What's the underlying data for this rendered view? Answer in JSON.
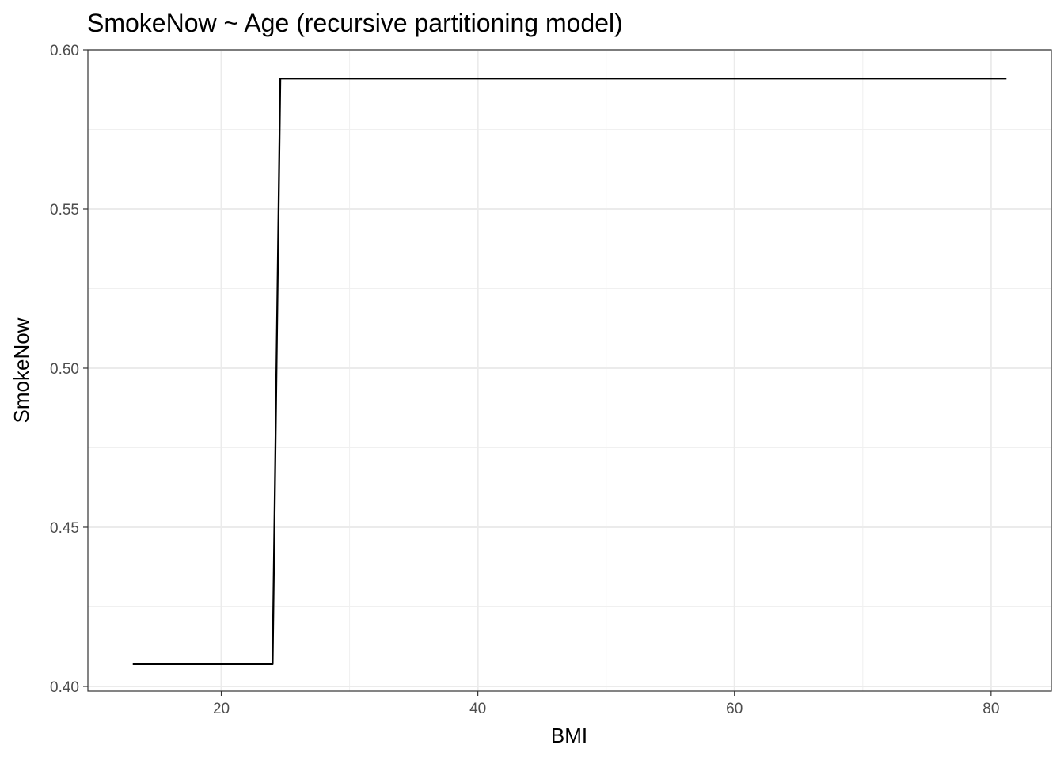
{
  "chart_data": {
    "type": "line",
    "title": "SmokeNow ~ Age (recursive partitioning model)",
    "xlabel": "BMI",
    "ylabel": "SmokeNow",
    "xlim": [
      9.6,
      84.7
    ],
    "ylim": [
      0.3985,
      0.6
    ],
    "x_ticks": [
      20,
      40,
      60,
      80
    ],
    "x_tick_labels": [
      "20",
      "40",
      "60",
      "80"
    ],
    "x_minor": [
      10,
      30,
      50,
      70
    ],
    "y_ticks": [
      0.4,
      0.45,
      0.5,
      0.55,
      0.6
    ],
    "y_tick_labels": [
      "0.40",
      "0.45",
      "0.50",
      "0.55",
      "0.60"
    ],
    "y_minor": [
      0.425,
      0.475,
      0.525,
      0.575
    ],
    "grid": true,
    "legend": "none",
    "series": [
      {
        "color": "#000000",
        "x": [
          13.1,
          24.0,
          24.6,
          81.2
        ],
        "y": [
          0.407,
          0.407,
          0.591,
          0.591
        ]
      }
    ]
  }
}
